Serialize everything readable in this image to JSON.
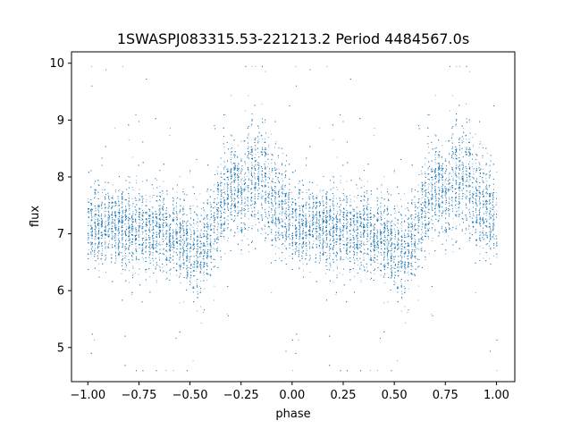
{
  "chart_data": {
    "type": "scatter",
    "title": "1SWASPJ083315.53-221213.2 Period 4484567.0s",
    "xlabel": "phase",
    "ylabel": "flux",
    "xlim": [
      -1.08,
      1.09
    ],
    "ylim": [
      4.4,
      10.2
    ],
    "xticks": [
      -1.0,
      -0.75,
      -0.5,
      -0.25,
      0.0,
      0.25,
      0.5,
      0.75,
      1.0
    ],
    "xtick_labels": [
      "−1.00",
      "−0.75",
      "−0.50",
      "−0.25",
      "0.00",
      "0.25",
      "0.50",
      "0.75",
      "1.00"
    ],
    "yticks": [
      5,
      6,
      7,
      8,
      9,
      10
    ],
    "ytick_labels": [
      "5",
      "6",
      "7",
      "8",
      "9",
      "10"
    ],
    "grid": false,
    "marker_color": "#1f77b4",
    "series": [
      {
        "note_phase_curve": "approximate folded light curve, repeated for phase -1..0 and 0..1",
        "phase": [
          0.0,
          0.05,
          0.1,
          0.15,
          0.2,
          0.25,
          0.3,
          0.35,
          0.4,
          0.45,
          0.5,
          0.55,
          0.6,
          0.65,
          0.7,
          0.75,
          0.8,
          0.85,
          0.9,
          0.95,
          1.0
        ],
        "median_flux": [
          7.15,
          7.1,
          7.2,
          7.15,
          7.05,
          7.1,
          7.0,
          7.1,
          6.95,
          7.0,
          6.75,
          6.6,
          6.95,
          7.55,
          7.8,
          7.7,
          7.9,
          7.95,
          7.6,
          7.55,
          7.15
        ],
        "spread": [
          0.45,
          0.45,
          0.45,
          0.45,
          0.45,
          0.45,
          0.45,
          0.45,
          0.45,
          0.5,
          0.55,
          0.55,
          0.55,
          0.55,
          0.55,
          0.6,
          0.65,
          0.65,
          0.6,
          0.55,
          0.45
        ]
      }
    ]
  }
}
